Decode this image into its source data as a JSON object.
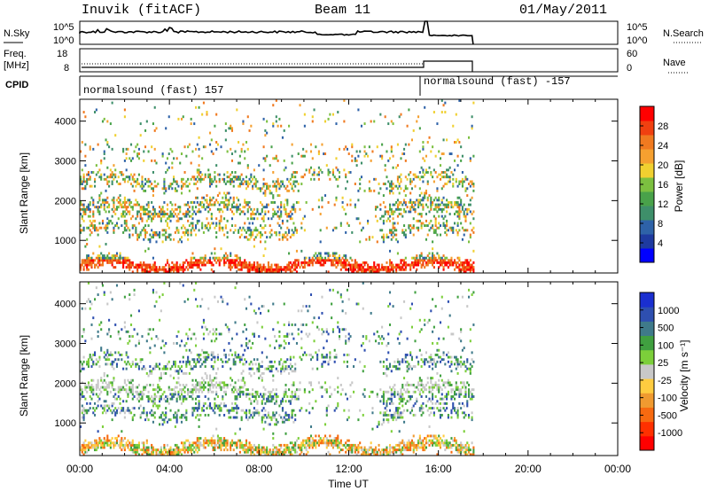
{
  "header": {
    "station": "Inuvik (fitACF)",
    "beam": "Beam 11",
    "date": "01/May/2011"
  },
  "left_labels": {
    "nsky": "N.Sky",
    "nsky_top": "10^5",
    "nsky_bottom": "10^0",
    "freq": "Freq.",
    "freq_unit": "[MHz]",
    "freq_top": "18",
    "freq_bottom": "8",
    "cpid": "CPID"
  },
  "right_labels": {
    "nsearch_top": "10^5",
    "nsearch_bottom": "10^0",
    "nsearch": "N.Search",
    "nave_top": "60",
    "nave_bottom": "0",
    "nave": "Nave"
  },
  "cpid_segments": [
    {
      "label": "normalsound (fast) 157",
      "start": "00:00",
      "end": "15:20"
    },
    {
      "label": "normalsound (fast) -157",
      "start": "15:20",
      "end": "17:35"
    }
  ],
  "colors": {
    "power": [
      "#0000ff",
      "#1e3aa0",
      "#2e62a8",
      "#3e8f6a",
      "#49a24a",
      "#7cc040",
      "#f0d030",
      "#f5a030",
      "#f07a20",
      "#f04010",
      "#ff0000"
    ],
    "velocity": [
      "#ff0000",
      "#ff3000",
      "#f76a10",
      "#f09a30",
      "#ffcc40",
      "#c8c8c8",
      "#7ccf3a",
      "#40a040",
      "#3f7a8a",
      "#2e4fb0",
      "#1a2fd0"
    ]
  },
  "chart_data": [
    {
      "type": "heatmap",
      "title": "Power",
      "xlabel": "Time UT",
      "ylabel": "Slant Range [km]",
      "x_ticks": [
        "00:00",
        "04:00",
        "08:00",
        "12:00",
        "16:00",
        "20:00",
        "00:00"
      ],
      "y_ticks": [
        "1000",
        "2000",
        "3000",
        "4000"
      ],
      "xlim_hours": [
        0,
        24
      ],
      "ylim_km": [
        180,
        4550
      ],
      "colorbar_label": "Power [dB]",
      "colorbar_ticks": [
        "4",
        "8",
        "12",
        "16",
        "20",
        "24",
        "28"
      ],
      "data_end_hour": 17.6
    },
    {
      "type": "heatmap",
      "title": "Velocity",
      "xlabel": "Time UT",
      "ylabel": "Slant Range [km]",
      "x_ticks": [
        "00:00",
        "04:00",
        "08:00",
        "12:00",
        "16:00",
        "20:00",
        "00:00"
      ],
      "y_ticks": [
        "1000",
        "2000",
        "3000",
        "4000"
      ],
      "xlim_hours": [
        0,
        24
      ],
      "ylim_km": [
        180,
        4550
      ],
      "colorbar_label": "Velocity [m s⁻¹]",
      "colorbar_ticks": [
        "-1000",
        "-500",
        "-100",
        "-25",
        "25",
        "100",
        "500",
        "1000"
      ],
      "data_end_hour": 17.6
    }
  ],
  "x_axis_label": "Time UT",
  "y_axis_label": "Slant Range [km]"
}
